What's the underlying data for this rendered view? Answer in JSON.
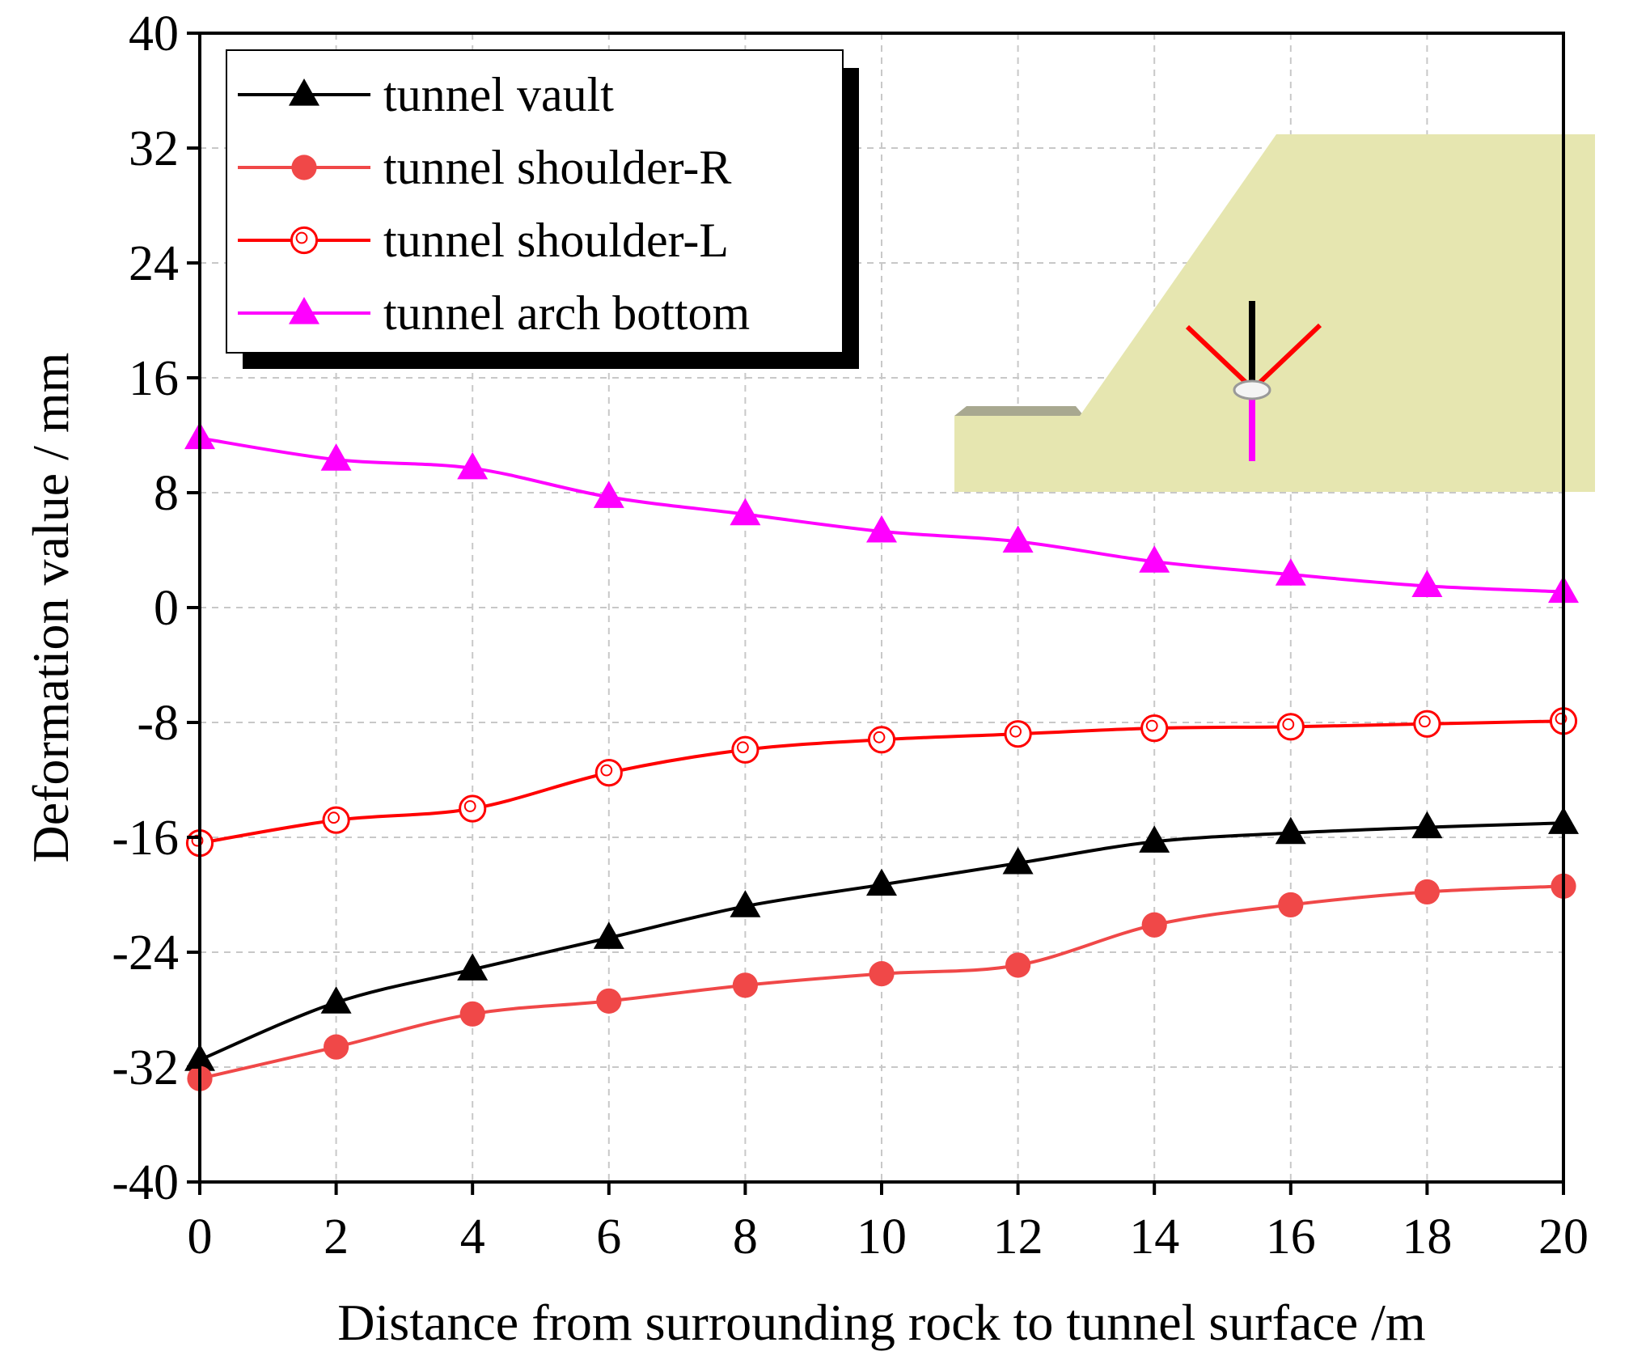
{
  "chart_data": {
    "type": "line",
    "title": "",
    "xlabel": "Distance from surrounding rock to tunnel surface /m",
    "ylabel": "Deformation value / mm",
    "xlim": [
      0,
      20
    ],
    "ylim": [
      -40,
      40
    ],
    "xticks": [
      0,
      2,
      4,
      6,
      8,
      10,
      12,
      14,
      16,
      18,
      20
    ],
    "yticks": [
      -40,
      -32,
      -24,
      -16,
      -8,
      0,
      8,
      16,
      24,
      32,
      40
    ],
    "grid": true,
    "legend_position": "top-left",
    "x": [
      0,
      2,
      4,
      6,
      8,
      10,
      12,
      14,
      16,
      18,
      20
    ],
    "series": [
      {
        "name": "tunnel vault",
        "color": "#000000",
        "marker": "triangle-filled",
        "values": [
          -31.5,
          -27.5,
          -25.2,
          -23.0,
          -20.8,
          -19.3,
          -17.8,
          -16.3,
          -15.7,
          -15.3,
          -15.0
        ]
      },
      {
        "name": "tunnel shoulder-R",
        "color": "#f04848",
        "marker": "circle-filled",
        "values": [
          -32.8,
          -30.6,
          -28.3,
          -27.4,
          -26.3,
          -25.5,
          -24.9,
          -22.1,
          -20.7,
          -19.8,
          -19.4
        ]
      },
      {
        "name": "tunnel shoulder-L",
        "color": "#ff0000",
        "marker": "circle-hollow",
        "values": [
          -16.4,
          -14.8,
          -14.0,
          -11.5,
          -9.9,
          -9.2,
          -8.8,
          -8.4,
          -8.3,
          -8.1,
          -7.9
        ]
      },
      {
        "name": "tunnel arch bottom",
        "color": "#ff00ff",
        "marker": "triangle-filled",
        "values": [
          11.8,
          10.3,
          9.7,
          7.7,
          6.5,
          5.3,
          4.6,
          3.2,
          2.3,
          1.5,
          1.1
        ]
      }
    ]
  },
  "inset": {
    "description_icon": "slope-with-tunnel-inset",
    "slope_color": "#e6e6b0",
    "ground_color": "#a8a890"
  }
}
